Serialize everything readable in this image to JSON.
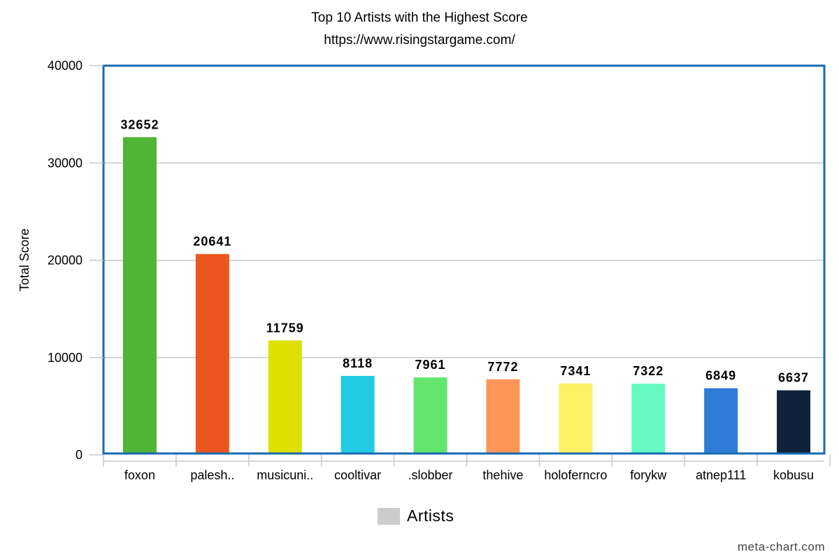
{
  "title": "Top 10 Artists with the Highest Score",
  "subtitle": "https://www.risingstargame.com/",
  "credit": "meta-chart.com",
  "chart_data": {
    "type": "bar",
    "title": "Top 10 Artists with the Highest Score",
    "subtitle": "https://www.risingstargame.com/",
    "xlabel": "",
    "ylabel": "Total Score",
    "ylim": [
      0,
      40000
    ],
    "yticks": [
      0,
      10000,
      20000,
      30000,
      40000
    ],
    "grid": true,
    "legend": {
      "position": "bottom-center",
      "entries": [
        "Artists"
      ]
    },
    "categories": [
      "foxon",
      "palesh..",
      "musicuni..",
      "cooltivar",
      ".slobber",
      "thehive",
      "holoferncro",
      "forykw",
      "atnep111",
      "kobusu"
    ],
    "series": [
      {
        "name": "Artists",
        "values": [
          32652,
          20641,
          11759,
          8118,
          7961,
          7772,
          7341,
          7322,
          6849,
          6637
        ],
        "colors": [
          "#4fb535",
          "#ec561e",
          "#dde000",
          "#24c9e3",
          "#62e66e",
          "#ff9557",
          "#fdf163",
          "#67f9c3",
          "#2f7cd8",
          "#0f2239"
        ]
      }
    ]
  }
}
